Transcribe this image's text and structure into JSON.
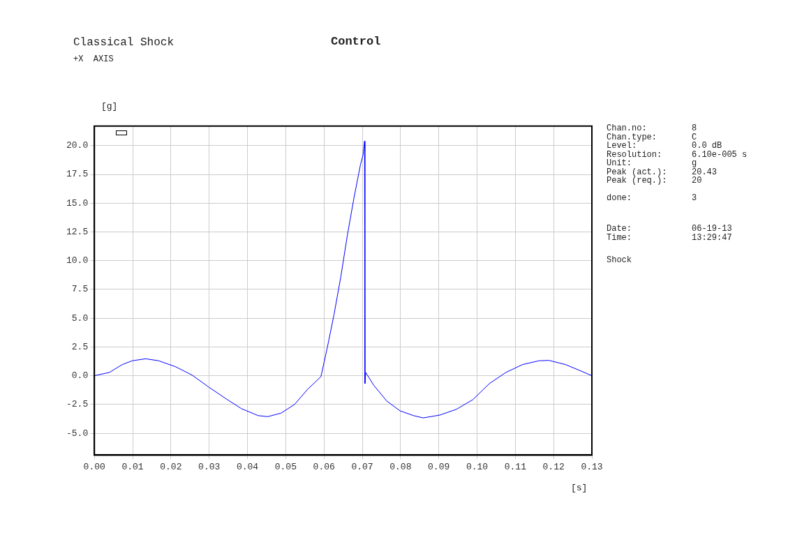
{
  "chart_data": {
    "type": "line",
    "title": "Control",
    "subtitle": "Classical Shock",
    "xlabel": "[s]",
    "ylabel": "[g]",
    "annotations": [
      "+X  AXIS",
      "Chan.no: 8",
      "Chan.type: C",
      "Level: 0.0 dB",
      "Resolution: 6.10e-005 s",
      "Unit: g",
      "Peak (act.): 20.43",
      "Peak (req.): 20",
      "done: 3",
      "Date: 06-19-13",
      "Time: 13:29:47",
      "Shock"
    ],
    "xlim": [
      0,
      0.13
    ],
    "xticks": [
      {
        "value": 0,
        "label": "0.00"
      },
      {
        "value": 0.01,
        "label": "0.01"
      },
      {
        "value": 0.02,
        "label": "0.02"
      },
      {
        "value": 0.03,
        "label": "0.03"
      },
      {
        "value": 0.04,
        "label": "0.04"
      },
      {
        "value": 0.05,
        "label": "0.05"
      },
      {
        "value": 0.06,
        "label": "0.06"
      },
      {
        "value": 0.07,
        "label": "0.07"
      },
      {
        "value": 0.08,
        "label": "0.08"
      },
      {
        "value": 0.09,
        "label": "0.09"
      },
      {
        "value": 0.1,
        "label": "0.10"
      },
      {
        "value": 0.11,
        "label": "0.11"
      },
      {
        "value": 0.12,
        "label": "0.12"
      },
      {
        "value": 0.13,
        "label": "0.13"
      }
    ],
    "ylim": [
      -6.9,
      21.7
    ],
    "yticks": [
      {
        "value": -5,
        "label": "-5.0"
      },
      {
        "value": -2.5,
        "label": "-2.5"
      },
      {
        "value": 0,
        "label": "0.0"
      },
      {
        "value": 2.5,
        "label": "2.5"
      },
      {
        "value": 5,
        "label": "5.0"
      },
      {
        "value": 7.5,
        "label": "7.5"
      },
      {
        "value": 10,
        "label": "10.0"
      },
      {
        "value": 12.5,
        "label": "12.5"
      },
      {
        "value": 15,
        "label": "15.0"
      },
      {
        "value": 17.5,
        "label": "17.5"
      },
      {
        "value": 20,
        "label": "20.0"
      }
    ],
    "grid": true,
    "legend": false,
    "marker": "none",
    "line_style": "solid",
    "series": [
      {
        "color": "#0000ff",
        "x": [
          0,
          0.0039,
          0.0073,
          0.0099,
          0.0134,
          0.0168,
          0.0212,
          0.0255,
          0.0298,
          0.0341,
          0.0384,
          0.0428,
          0.0453,
          0.0488,
          0.0523,
          0.0557,
          0.0592,
          0.0609,
          0.0626,
          0.0644,
          0.0661,
          0.0678,
          0.0695,
          0.0702,
          0.0706,
          0.0707,
          0.0709,
          0.073,
          0.0764,
          0.0799,
          0.0834,
          0.0859,
          0.0903,
          0.0946,
          0.0989,
          0.1032,
          0.1075,
          0.1119,
          0.1162,
          0.1188,
          0.1231,
          0.1265,
          0.13
        ],
        "values": [
          0,
          0.28,
          0.97,
          1.3,
          1.47,
          1.3,
          0.78,
          0.06,
          -0.97,
          -1.94,
          -2.86,
          -3.47,
          -3.56,
          -3.25,
          -2.5,
          -1.19,
          -0.08,
          2.5,
          5.28,
          8.61,
          12.2,
          15.4,
          18.3,
          19.2,
          20.4,
          -0.69,
          0.28,
          -0.83,
          -2.2,
          -3.06,
          -3.47,
          -3.67,
          -3.42,
          -2.92,
          -2.08,
          -0.69,
          0.28,
          0.97,
          1.3,
          1.33,
          0.97,
          0.5,
          0
        ]
      }
    ]
  }
}
